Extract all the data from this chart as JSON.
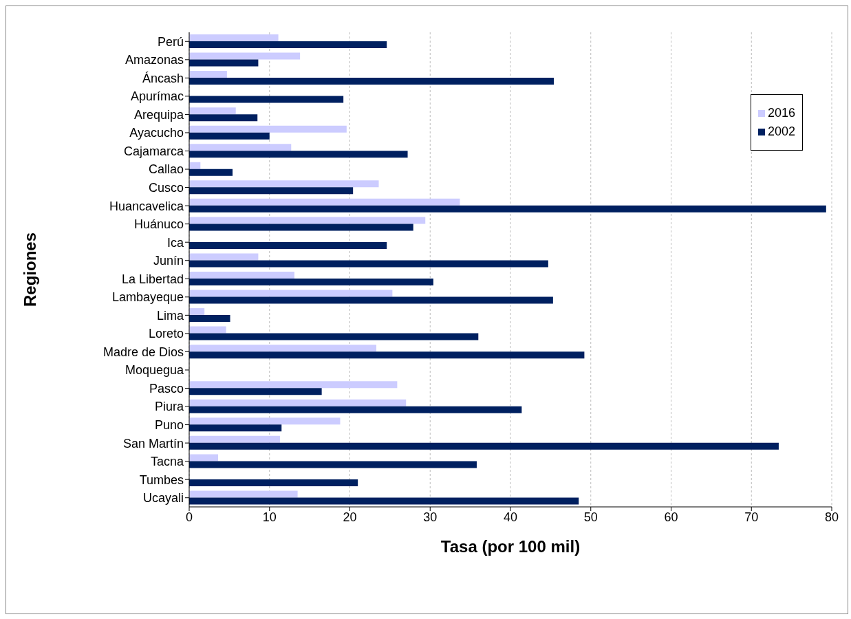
{
  "chart_data": {
    "type": "bar",
    "orientation": "horizontal",
    "xlabel": "Tasa (por 100 mil)",
    "ylabel": "Regiones",
    "categories": [
      "Perú",
      "Amazonas",
      "Áncash",
      "Apurímac",
      "Arequipa",
      "Ayacucho",
      "Cajamarca",
      "Callao",
      "Cusco",
      "Huancavelica",
      "Huánuco",
      "Ica",
      "Junín",
      "La Libertad",
      "Lambayeque",
      "Lima",
      "Loreto",
      "Madre de Dios",
      "Moquegua",
      "Pasco",
      "Piura",
      "Puno",
      "San Martín",
      "Tacna",
      "Tumbes",
      "Ucayali"
    ],
    "series": [
      {
        "name": "2016",
        "color": "#ccccff",
        "values": [
          11.1,
          13.8,
          4.7,
          null,
          5.8,
          19.6,
          12.7,
          1.4,
          23.6,
          33.7,
          29.4,
          null,
          8.6,
          13.1,
          25.3,
          1.9,
          4.6,
          23.3,
          null,
          25.9,
          27.0,
          18.8,
          11.3,
          3.6,
          null,
          13.5
        ]
      },
      {
        "name": "2002",
        "color": "#002060",
        "values": [
          24.6,
          8.6,
          45.4,
          19.2,
          8.5,
          10.0,
          27.2,
          5.4,
          20.4,
          79.3,
          27.9,
          24.6,
          44.7,
          30.4,
          45.3,
          5.1,
          36.0,
          49.2,
          null,
          16.5,
          41.4,
          11.5,
          73.4,
          35.8,
          21.0,
          48.5
        ]
      }
    ],
    "xlim": [
      0,
      80
    ],
    "xticks": [
      0,
      10,
      20,
      30,
      40,
      50,
      60,
      70,
      80
    ],
    "grid": "x",
    "legend": "top right"
  }
}
